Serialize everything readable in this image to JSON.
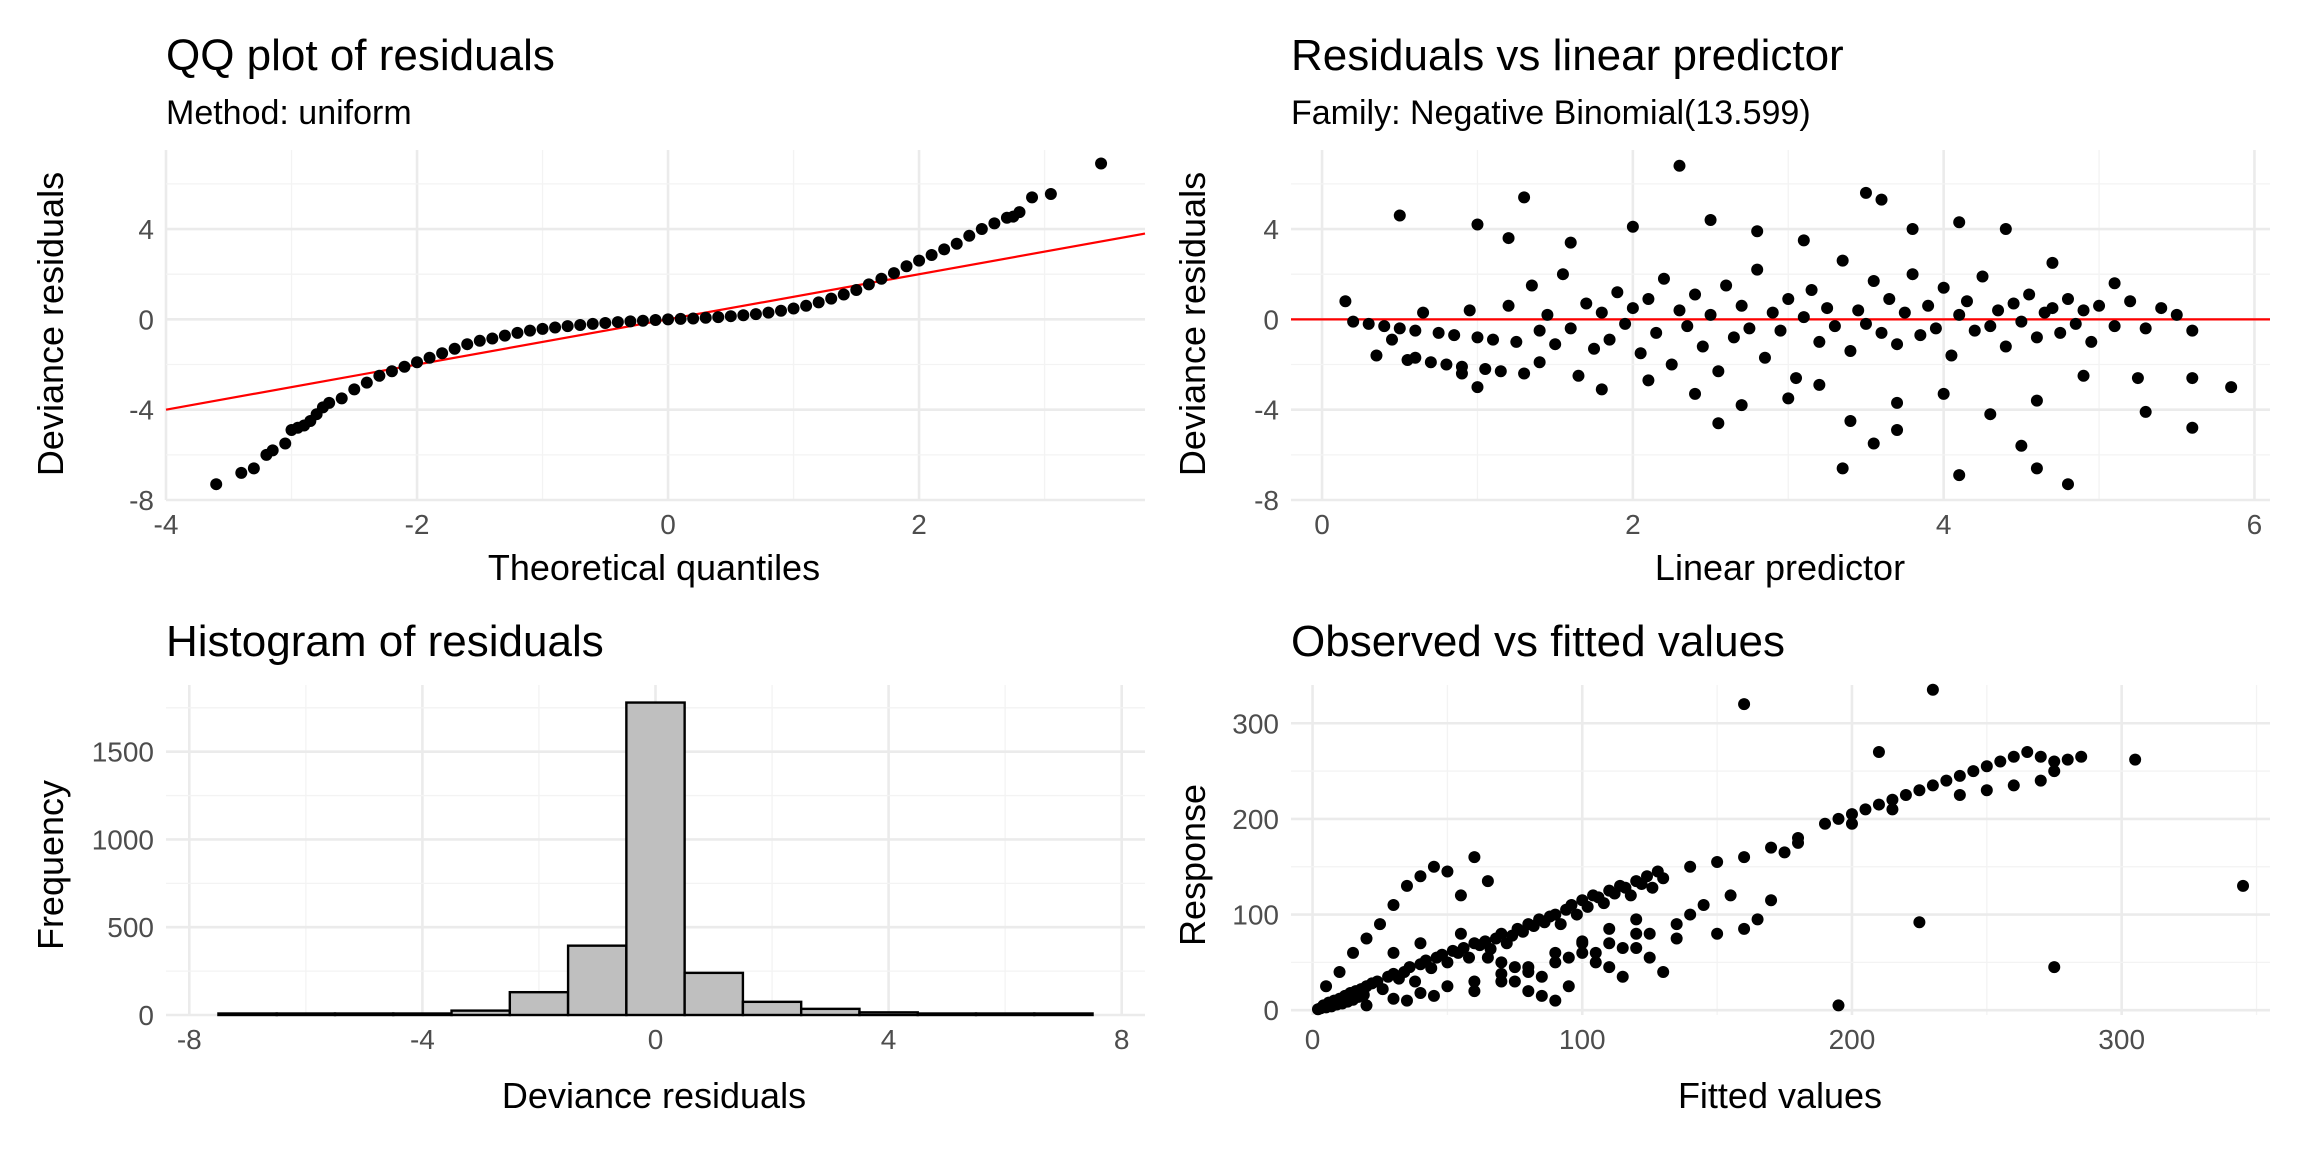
{
  "chart_data": [
    {
      "type": "scatter",
      "title": "QQ plot of residuals",
      "subtitle": "Method: uniform",
      "xlabel": "Theoretical quantiles",
      "ylabel": "Deviance residuals",
      "xlim": [
        -4,
        3.8
      ],
      "ylim": [
        -8,
        7.5
      ],
      "xticks": [
        -4,
        -2,
        0,
        2
      ],
      "yticks": [
        -8,
        -4,
        0,
        4
      ],
      "grid": true,
      "reference_line": {
        "intercept": 0,
        "slope": 1.0,
        "color": "#ff0000"
      },
      "points": {
        "x": [
          -3.6,
          -3.4,
          -3.3,
          -3.2,
          -3.15,
          -3.05,
          -3.0,
          -2.95,
          -2.9,
          -2.85,
          -2.8,
          -2.75,
          -2.7,
          -2.6,
          -2.5,
          -2.4,
          -2.3,
          -2.2,
          -2.1,
          -2.0,
          -1.9,
          -1.8,
          -1.7,
          -1.6,
          -1.5,
          -1.4,
          -1.3,
          -1.2,
          -1.1,
          -1.0,
          -0.9,
          -0.8,
          -0.7,
          -0.6,
          -0.5,
          -0.4,
          -0.3,
          -0.2,
          -0.1,
          0.0,
          0.1,
          0.2,
          0.3,
          0.4,
          0.5,
          0.6,
          0.7,
          0.8,
          0.9,
          1.0,
          1.1,
          1.2,
          1.3,
          1.4,
          1.5,
          1.6,
          1.7,
          1.8,
          1.9,
          2.0,
          2.1,
          2.2,
          2.3,
          2.4,
          2.5,
          2.6,
          2.7,
          2.75,
          2.8,
          2.9,
          3.05,
          3.45
        ],
        "y": [
          -7.3,
          -6.8,
          -6.6,
          -6.0,
          -5.8,
          -5.5,
          -4.9,
          -4.8,
          -4.7,
          -4.5,
          -4.2,
          -3.9,
          -3.7,
          -3.5,
          -3.1,
          -2.8,
          -2.5,
          -2.3,
          -2.1,
          -1.9,
          -1.7,
          -1.5,
          -1.3,
          -1.1,
          -0.95,
          -0.85,
          -0.72,
          -0.6,
          -0.5,
          -0.42,
          -0.36,
          -0.3,
          -0.25,
          -0.2,
          -0.16,
          -0.12,
          -0.09,
          -0.06,
          -0.03,
          0.0,
          0.02,
          0.04,
          0.07,
          0.1,
          0.14,
          0.18,
          0.23,
          0.3,
          0.38,
          0.48,
          0.6,
          0.75,
          0.92,
          1.1,
          1.3,
          1.55,
          1.8,
          2.05,
          2.35,
          2.6,
          2.85,
          3.1,
          3.35,
          3.7,
          4.0,
          4.25,
          4.5,
          4.55,
          4.75,
          5.4,
          5.55,
          6.9
        ]
      }
    },
    {
      "type": "scatter",
      "title": "Residuals vs linear predictor",
      "subtitle": "Family: Negative Binomial(13.599)",
      "xlabel": "Linear predictor",
      "ylabel": "Deviance residuals",
      "xlim": [
        -0.2,
        6.1
      ],
      "ylim": [
        -8,
        7.5
      ],
      "xticks": [
        0,
        2,
        4,
        6
      ],
      "yticks": [
        -8,
        -4,
        0,
        4
      ],
      "grid": true,
      "reference_line": {
        "intercept": 0,
        "slope": 0,
        "color": "#ff0000"
      },
      "points": {
        "x": [
          0.15,
          0.2,
          0.3,
          0.35,
          0.4,
          0.5,
          0.55,
          0.6,
          0.65,
          0.7,
          0.75,
          0.8,
          0.85,
          0.9,
          0.95,
          1.0,
          1.05,
          1.1,
          1.15,
          1.2,
          1.25,
          1.3,
          1.35,
          1.4,
          1.45,
          1.5,
          1.55,
          1.6,
          1.65,
          1.7,
          1.75,
          1.8,
          1.85,
          1.9,
          1.95,
          2.0,
          2.05,
          2.1,
          2.15,
          2.2,
          2.25,
          2.3,
          2.35,
          2.4,
          2.45,
          2.5,
          2.55,
          2.6,
          2.65,
          2.7,
          2.75,
          2.8,
          2.85,
          2.9,
          2.95,
          3.0,
          3.05,
          3.1,
          3.15,
          3.2,
          3.25,
          3.3,
          3.35,
          3.4,
          3.45,
          3.5,
          3.55,
          3.6,
          3.65,
          3.7,
          3.75,
          3.8,
          3.85,
          3.9,
          3.95,
          4.0,
          4.05,
          4.1,
          4.15,
          4.2,
          4.25,
          4.3,
          4.35,
          4.4,
          4.45,
          4.5,
          4.55,
          4.6,
          4.65,
          4.7,
          4.75,
          4.8,
          4.85,
          4.9,
          4.95,
          5.0,
          5.1,
          5.2,
          5.3,
          5.4,
          5.5,
          5.6,
          5.85,
          0.5,
          1.0,
          1.2,
          1.3,
          1.6,
          2.0,
          2.3,
          2.5,
          2.8,
          3.1,
          3.5,
          3.6,
          3.8,
          4.1,
          4.4,
          4.7,
          5.1,
          5.25,
          5.6,
          0.45,
          0.6,
          0.9,
          1.0,
          1.4,
          1.8,
          2.1,
          2.4,
          2.7,
          3.0,
          3.2,
          3.4,
          3.7,
          4.0,
          4.3,
          4.6,
          4.9,
          5.3,
          5.6,
          3.55,
          2.55,
          3.7,
          3.35,
          4.1,
          4.5,
          4.6,
          4.8
        ],
        "y": [
          0.8,
          -0.1,
          -0.2,
          -1.6,
          -0.3,
          -0.4,
          -1.8,
          -0.5,
          0.3,
          -1.9,
          -0.6,
          -2.0,
          -0.7,
          -2.1,
          0.4,
          -0.8,
          -2.2,
          -0.9,
          -2.3,
          0.6,
          -1.0,
          -2.4,
          1.5,
          -0.5,
          0.2,
          -1.1,
          2.0,
          -0.4,
          -2.5,
          0.7,
          -1.3,
          0.3,
          -0.9,
          1.2,
          -0.2,
          0.5,
          -1.5,
          0.9,
          -0.6,
          1.8,
          -2.0,
          0.4,
          -0.3,
          1.1,
          -1.2,
          0.2,
          -2.3,
          1.5,
          -0.8,
          0.6,
          -0.4,
          2.2,
          -1.7,
          0.3,
          -0.5,
          0.9,
          -2.6,
          0.1,
          1.3,
          -1.0,
          0.5,
          -0.3,
          2.6,
          -1.4,
          0.4,
          -0.2,
          1.7,
          -0.6,
          0.9,
          -1.1,
          0.3,
          2.0,
          -0.7,
          0.6,
          -0.4,
          1.4,
          -1.6,
          0.2,
          0.8,
          -0.5,
          1.9,
          -0.3,
          0.4,
          -1.2,
          0.7,
          -0.1,
          1.1,
          -0.8,
          0.3,
          0.5,
          -0.6,
          0.9,
          -0.2,
          0.4,
          -1.0,
          0.6,
          -0.3,
          0.8,
          -0.4,
          0.5,
          0.2,
          -0.5,
          -3.0,
          4.6,
          4.2,
          3.6,
          5.4,
          3.4,
          4.1,
          6.8,
          4.4,
          3.9,
          3.5,
          5.6,
          5.3,
          4.0,
          4.3,
          4.0,
          2.5,
          1.6,
          -2.6,
          -4.8,
          -0.9,
          -1.7,
          -2.4,
          -3.0,
          -1.9,
          -3.1,
          -2.7,
          -3.3,
          -3.8,
          -3.5,
          -2.9,
          -4.5,
          -3.7,
          -3.3,
          -4.2,
          -3.6,
          -2.5,
          -4.1,
          -2.6,
          -5.5,
          -4.6,
          -4.9,
          -6.6,
          -6.9,
          -5.6,
          -6.6,
          -7.3
        ]
      }
    },
    {
      "type": "bar",
      "title": "Histogram of residuals",
      "xlabel": "Deviance residuals",
      "ylabel": "Frequency",
      "xlim": [
        -8.4,
        8.4
      ],
      "ylim": [
        0,
        1880
      ],
      "xticks": [
        -8,
        -4,
        0,
        4,
        8
      ],
      "yticks": [
        0,
        500,
        1000,
        1500
      ],
      "grid": true,
      "bin_width": 1,
      "bin_centers": [
        -7,
        -6,
        -5,
        -4,
        -3,
        -2,
        -1,
        0,
        1,
        2,
        3,
        4,
        5,
        6,
        7
      ],
      "values": [
        2,
        2,
        5,
        8,
        25,
        130,
        395,
        1780,
        240,
        75,
        35,
        15,
        5,
        2,
        2
      ],
      "fill": "#bfbfbf",
      "edge": "#000000"
    },
    {
      "type": "scatter",
      "title": "Observed vs fitted values",
      "xlabel": "Fitted values",
      "ylabel": "Response",
      "xlim": [
        -8,
        355
      ],
      "ylim": [
        -5,
        340
      ],
      "xticks": [
        0,
        100,
        200,
        300
      ],
      "yticks": [
        0,
        100,
        200,
        300
      ],
      "grid": true,
      "points": {
        "x": [
          2,
          3,
          4,
          5,
          6,
          7,
          8,
          9,
          10,
          11,
          12,
          13,
          14,
          15,
          16,
          17,
          18,
          19,
          20,
          22,
          24,
          26,
          28,
          30,
          32,
          34,
          36,
          38,
          40,
          42,
          44,
          46,
          48,
          50,
          52,
          54,
          56,
          58,
          60,
          62,
          64,
          66,
          68,
          70,
          72,
          74,
          76,
          78,
          80,
          82,
          84,
          86,
          88,
          90,
          92,
          94,
          96,
          98,
          100,
          102,
          104,
          106,
          108,
          110,
          112,
          114,
          116,
          118,
          120,
          122,
          124,
          126,
          128,
          130,
          140,
          150,
          160,
          170,
          180,
          190,
          195,
          200,
          205,
          210,
          215,
          220,
          225,
          230,
          235,
          240,
          245,
          250,
          255,
          260,
          265,
          270,
          275,
          280,
          285,
          5,
          10,
          15,
          20,
          25,
          30,
          35,
          40,
          45,
          50,
          55,
          60,
          65,
          70,
          75,
          80,
          85,
          90,
          95,
          100,
          105,
          110,
          115,
          120,
          125,
          130,
          135,
          140,
          145,
          150,
          155,
          160,
          165,
          170,
          175,
          180,
          20,
          30,
          40,
          50,
          60,
          70,
          80,
          90,
          100,
          110,
          120,
          30,
          40,
          55,
          65,
          75,
          85,
          95,
          105,
          115,
          125,
          135,
          35,
          45,
          60,
          70,
          80,
          90,
          100,
          110,
          120,
          160,
          230,
          195,
          210,
          225,
          275,
          345,
          305,
          200,
          215,
          240,
          250,
          260,
          270,
          275
        ],
        "y": [
          1,
          2,
          5,
          3,
          8,
          4,
          10,
          6,
          12,
          7,
          15,
          9,
          18,
          11,
          20,
          14,
          22,
          16,
          25,
          28,
          30,
          22,
          35,
          38,
          33,
          40,
          45,
          30,
          48,
          52,
          44,
          55,
          58,
          50,
          62,
          60,
          65,
          55,
          70,
          68,
          72,
          64,
          75,
          80,
          70,
          78,
          85,
          82,
          90,
          88,
          95,
          92,
          98,
          100,
          90,
          105,
          110,
          100,
          115,
          108,
          120,
          118,
          112,
          125,
          122,
          130,
          128,
          120,
          135,
          132,
          140,
          128,
          145,
          138,
          150,
          155,
          160,
          170,
          175,
          195,
          200,
          205,
          210,
          215,
          220,
          225,
          230,
          235,
          240,
          245,
          250,
          255,
          260,
          265,
          270,
          265,
          260,
          262,
          265,
          25,
          40,
          60,
          75,
          90,
          110,
          130,
          140,
          150,
          145,
          120,
          160,
          135,
          50,
          30,
          20,
          15,
          10,
          55,
          70,
          60,
          45,
          35,
          65,
          80,
          40,
          90,
          100,
          110,
          80,
          120,
          85,
          95,
          115,
          165,
          180,
          5,
          12,
          18,
          25,
          30,
          38,
          45,
          60,
          72,
          85,
          95,
          60,
          70,
          80,
          55,
          45,
          35,
          25,
          50,
          65,
          55,
          75,
          10,
          15,
          20,
          30,
          40,
          50,
          60,
          70,
          80,
          320,
          335,
          5,
          270,
          92,
          45,
          130,
          262,
          195,
          210,
          225,
          230,
          235,
          240,
          250
        ]
      }
    }
  ]
}
